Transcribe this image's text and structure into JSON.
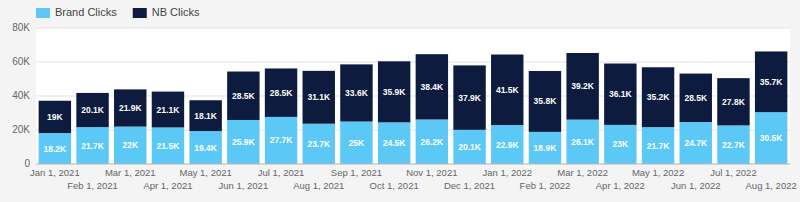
{
  "chart_data": {
    "type": "bar",
    "stacked": true,
    "data_labels": true,
    "grid": true,
    "legend": "upper left",
    "categories": [
      "Jan 1, 2021",
      "Feb 1, 2021",
      "Mar 1, 2021",
      "Apr 1, 2021",
      "May 1, 2021",
      "Jun 1, 2021",
      "Jul 1, 2021",
      "Aug 1, 2021",
      "Sep 1, 2021",
      "Oct 1, 2021",
      "Nov 1, 2021",
      "Dec 1, 2021",
      "Jan 1, 2022",
      "Feb 1, 2022",
      "Mar 1, 2022",
      "Apr 1, 2022",
      "May 1, 2022",
      "Jun 1, 2022",
      "Jul 1, 2022",
      "Aug 1, 2022"
    ],
    "series": [
      {
        "name": "Brand Clicks",
        "color": "#5bc8f5",
        "values": [
          18200,
          21700,
          22000,
          21500,
          19400,
          25900,
          27700,
          23700,
          25000,
          24500,
          26200,
          20100,
          22900,
          18900,
          26100,
          23000,
          21700,
          24700,
          22700,
          30500
        ],
        "value_labels": [
          "18.2K",
          "21.7K",
          "22K",
          "21.5K",
          "19.4K",
          "25.9K",
          "27.7K",
          "23.7K",
          "25K",
          "24.5K",
          "26.2K",
          "20.1K",
          "22.9K",
          "18.9K",
          "26.1K",
          "23K",
          "21.7K",
          "24.7K",
          "22.7K",
          "30.5K"
        ]
      },
      {
        "name": "NB Clicks",
        "color": "#0d1b3e",
        "values": [
          19000,
          20100,
          21900,
          21100,
          18100,
          28500,
          28500,
          31100,
          33600,
          35900,
          38400,
          37900,
          41500,
          35800,
          39200,
          36100,
          35200,
          28500,
          27800,
          35700
        ],
        "value_labels": [
          "19K",
          "20.1K",
          "21.9K",
          "21.1K",
          "18.1K",
          "28.5K",
          "28.5K",
          "31.1K",
          "33.6K",
          "35.9K",
          "38.4K",
          "37.9K",
          "41.5K",
          "35.8K",
          "39.2K",
          "36.1K",
          "35.2K",
          "28.5K",
          "27.8K",
          "35.7K"
        ]
      }
    ],
    "ylim": [
      0,
      80000
    ],
    "yticks": [
      0,
      {
        "value": 20000,
        "label": "20K"
      },
      {
        "value": 40000,
        "label": "40K"
      },
      {
        "value": 60000,
        "label": "60K"
      },
      {
        "value": 80000,
        "label": "80K"
      }
    ]
  }
}
